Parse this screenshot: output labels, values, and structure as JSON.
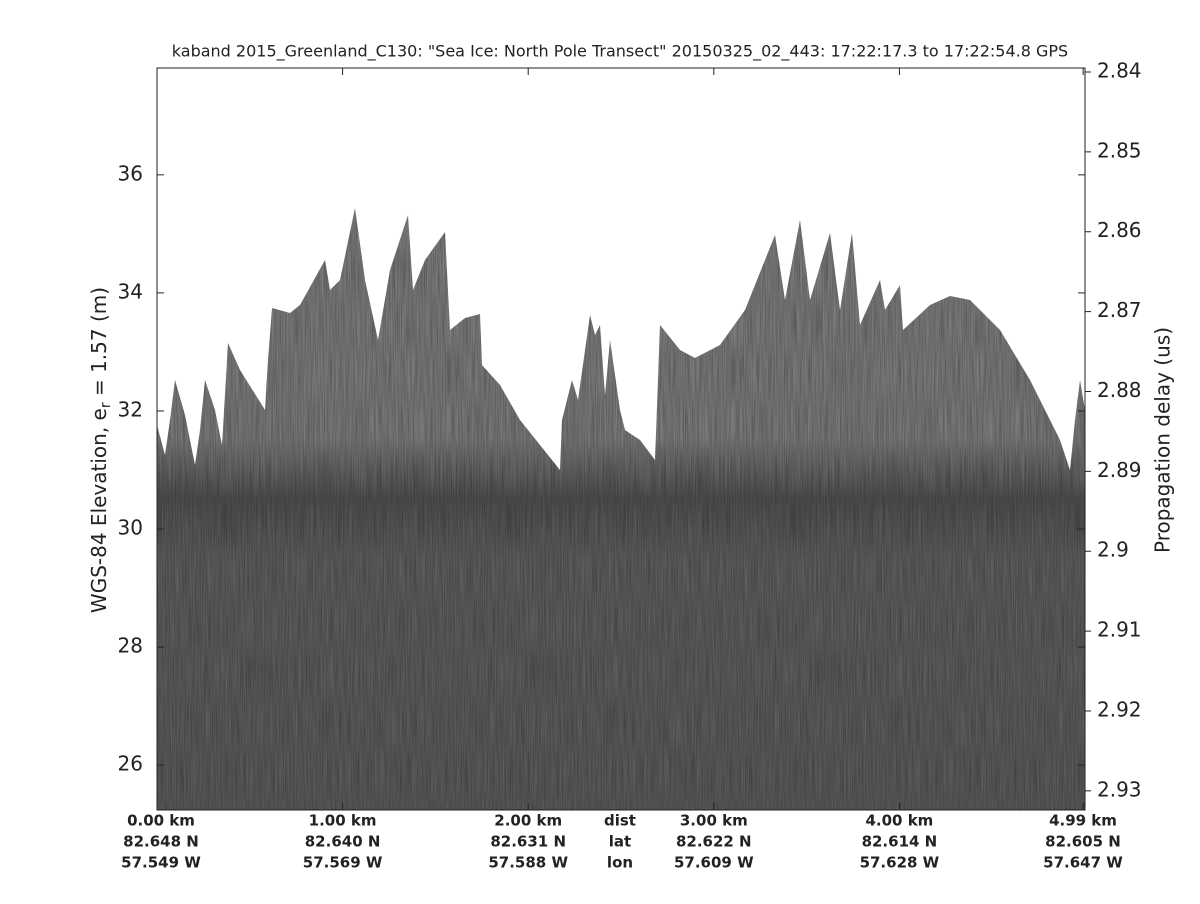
{
  "chart_data": {
    "type": "echogram",
    "title": "kaband 2015_Greenland_C130: \"Sea Ice: North Pole Transect\"  20150325_02_443: 17:22:17.3 to 17:22:54.8 GPS",
    "ylabel": {
      "main": "WGS-84 Elevation, e",
      "sub": "r",
      "tail": " = 1.57 (m)"
    },
    "y2label": "Propagation delay (us)",
    "xlim": [
      0,
      5.0
    ],
    "xticks": [
      {
        "value": 0,
        "label": "0.00 km"
      },
      {
        "value": 1,
        "label": "1.00 km"
      },
      {
        "value": 2,
        "label": "2.00 km"
      },
      {
        "value": 3,
        "label": "3.00 km"
      },
      {
        "value": 4,
        "label": "4.00 km"
      },
      {
        "value": 4.99,
        "label": "4.99 km"
      }
    ],
    "lat_labels": [
      "82.648 N",
      "82.640 N",
      "82.631 N",
      "82.622 N",
      "82.614 N",
      "82.605 N"
    ],
    "lon_labels": [
      "57.549 W",
      "57.569 W",
      "57.588 W",
      "57.609 W",
      "57.628 W",
      "57.647 W"
    ],
    "row_labels": [
      "dist",
      "lat",
      "lon"
    ],
    "ylim": [
      25.24,
      37.81
    ],
    "yticks": [
      26,
      28,
      30,
      32,
      34,
      36
    ],
    "y2lim": [
      2.9324,
      2.8395
    ],
    "y2ticks": [
      2.84,
      2.85,
      2.86,
      2.87,
      2.88,
      2.89,
      2.9,
      2.91,
      2.92,
      2.93
    ]
  }
}
